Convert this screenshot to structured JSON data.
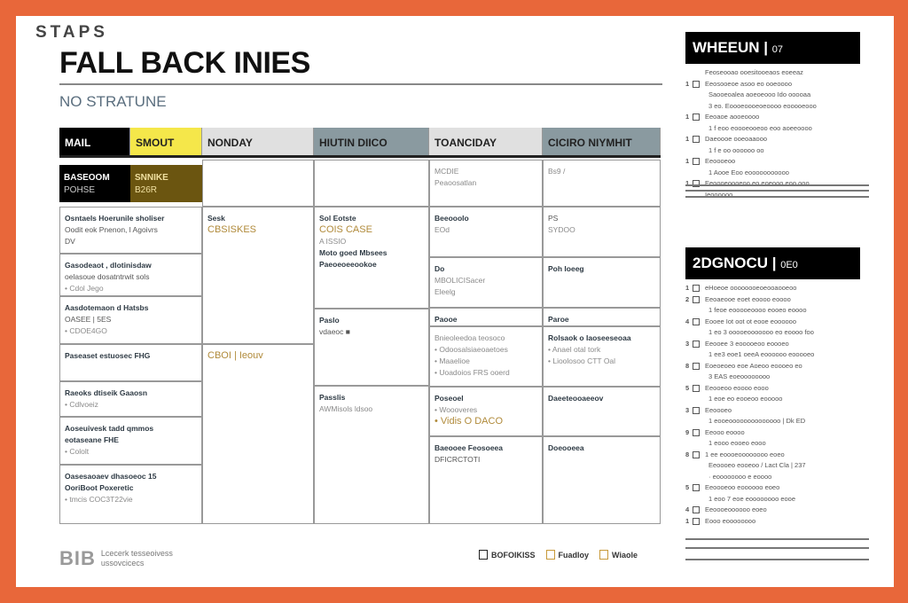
{
  "kicker": "STAPS",
  "title": "FALL BACK INIES",
  "subtitle": "NO STRATUNE",
  "colors": {
    "frame": "#e8673a",
    "black": "#000000",
    "yellow": "#f5e74a",
    "olive": "#6b5510",
    "slate": "#8a9aa0",
    "light": "#e0e0e0"
  },
  "headers": [
    {
      "label": "MAIL",
      "bg": "#000000",
      "fg": "#ffffff"
    },
    {
      "label": "SMOUT",
      "bg": "#f5e74a",
      "fg": "#222222"
    },
    {
      "label": "NONDAY",
      "bg": "#e0e0e0",
      "fg": "#222222"
    },
    {
      "label": "HIUTIN DIICO",
      "bg": "#8a9aa0",
      "fg": "#222222"
    },
    {
      "label": "TOANCIDAY",
      "bg": "#e0e0e0",
      "fg": "#222222"
    },
    {
      "label": "CICIRO NIYMHIT",
      "bg": "#8a9aa0",
      "fg": "#222222"
    }
  ],
  "feature": {
    "left": [
      "BASEOOM",
      "POHSE"
    ],
    "right": [
      "SNNIKE",
      "B26R"
    ]
  },
  "cells": {
    "c1a": [
      {
        "t": "Osntaels Hoerunile sholiser",
        "c": "b"
      },
      {
        "t": "Oodit eok Pnenon, l Agoivrs",
        "c": "d"
      },
      {
        "t": "DV",
        "c": "d"
      }
    ],
    "c1b": [
      {
        "t": "Gasodeaot , dlotinisdaw",
        "c": "b"
      },
      {
        "t": "oelasoue dosatntrwit sols",
        "c": "d"
      },
      {
        "t": "• Cdol Jego",
        "c": "g"
      }
    ],
    "c1c": [
      {
        "t": "Aasdotemaon d Hatsbs",
        "c": "b"
      },
      {
        "t": "OASEE | 5ES",
        "c": "d"
      },
      {
        "t": "• CDOE4GO",
        "c": "g"
      }
    ],
    "c1d": [
      {
        "t": "Paseaset estuosec FHG",
        "c": "b"
      }
    ],
    "c1e": [
      {
        "t": "Raeoks dtiseik Gaaosn",
        "c": "b"
      },
      {
        "t": "• Cdlvoeiz",
        "c": "g"
      }
    ],
    "c1f": [
      {
        "t": "Aoseuivesk tadd qmmos",
        "c": "b"
      },
      {
        "t": "eotaseane FHE",
        "c": "b"
      },
      {
        "t": "• Cololt",
        "c": "g"
      }
    ],
    "c1g": [
      {
        "t": "Oasesaoaev dhasoeoc 15",
        "c": "b"
      },
      {
        "t": "OoriBoot  Poxeretic",
        "c": "b"
      },
      {
        "t": "• tmcis COC3T22vie",
        "c": "g"
      }
    ],
    "c2a": [
      {
        "t": "Sesk",
        "c": "b"
      },
      {
        "t": "CBSISKES",
        "c": "o"
      }
    ],
    "c2b": [
      {
        "t": "CBOI | Ieouv",
        "c": "o"
      }
    ],
    "c3a": [
      {
        "t": "Sol Eotste",
        "c": "b"
      },
      {
        "t": "COIS CASE",
        "c": "o"
      },
      {
        "t": "A ISSIO",
        "c": "g"
      },
      {
        "t": " ",
        "c": "g"
      },
      {
        "t": " ",
        "c": "g"
      },
      {
        "t": "Moto goed Mbsees",
        "c": "b"
      },
      {
        "t": "Paeoeoeeookoe",
        "c": "b"
      }
    ],
    "c3b": [
      {
        "t": "Paslo",
        "c": "b"
      },
      {
        "t": "vdaeoc ■",
        "c": "d"
      }
    ],
    "c3c": [
      {
        "t": "Passlis",
        "c": "b"
      },
      {
        "t": "AWMisols ldsoo",
        "c": "g"
      }
    ],
    "c4h": [
      {
        "t": "MCDIE",
        "c": "g"
      },
      {
        "t": "Peaoosatlan",
        "c": "g"
      }
    ],
    "c4a": [
      {
        "t": "Beeooolo",
        "c": "b"
      },
      {
        "t": "EOd",
        "c": "g"
      }
    ],
    "c4b": [
      {
        "t": "Do",
        "c": "b"
      },
      {
        "t": "MBOLICISacer",
        "c": "g"
      },
      {
        "t": "Eleelg",
        "c": "g"
      }
    ],
    "c4c": [
      {
        "t": "Paooe",
        "c": "b"
      }
    ],
    "c4d": [
      {
        "t": "Bnieoleedoa teosoco",
        "c": "g"
      },
      {
        "t": "• Odoosalsiaeoaetoes",
        "c": "g"
      },
      {
        "t": "• Maaelioe",
        "c": "g"
      },
      {
        "t": "• Uoadoios FRS ooerd",
        "c": "g"
      }
    ],
    "c4e": [
      {
        "t": "Poseoel",
        "c": "b"
      },
      {
        "t": "• Woooveres",
        "c": "g"
      },
      {
        "t": "• Vidis O DACO",
        "c": "o"
      }
    ],
    "c4f": [
      {
        "t": "Baeooee Feosoeea",
        "c": "b"
      },
      {
        "t": "DFICRCTOTI",
        "c": "d"
      }
    ],
    "c5h": [
      {
        "t": "Bs9 /",
        "c": "g"
      }
    ],
    "c5a": [
      {
        "t": "PS",
        "c": "d"
      },
      {
        "t": "SYDOO",
        "c": "g"
      }
    ],
    "c5b": [
      {
        "t": "Poh Ioeeg",
        "c": "b"
      }
    ],
    "c5c": [
      {
        "t": "Paroe",
        "c": "b"
      }
    ],
    "c5d": [
      {
        "t": "Rolsaok o Iaoseeseoaa",
        "c": "b"
      },
      {
        "t": "• Anael otal tork",
        "c": "g"
      },
      {
        "t": "• Lioolosoo CTT Oal",
        "c": "g"
      }
    ],
    "c5e": [
      {
        "t": "Daeeteooaeeov",
        "c": "b"
      }
    ],
    "c5f": [
      {
        "t": "Doeooeea",
        "c": "b"
      }
    ]
  },
  "panels": [
    {
      "title": "WHEEUN",
      "tag": "07",
      "items": [
        {
          "n": "",
          "t": "Feoseooao ooesitooeaos eoeeaz",
          "sub": false,
          "box": false
        },
        {
          "n": "1",
          "t": "Eeosooeoe asoo eo ooeoooo",
          "sub": false,
          "box": true
        },
        {
          "n": "",
          "t": "Saooeoalea aoeoeooo  Ido ooooaa",
          "sub": true
        },
        {
          "n": "",
          "t": "3 eo. Eoooeoooeoeoooo eooooeooo",
          "sub": true
        },
        {
          "n": "1",
          "t": "Eeoaoe aooeoooo",
          "sub": false,
          "box": true
        },
        {
          "n": "",
          "t": "1 f eoo eoooeooeoo eoo aoeeoooo",
          "sub": true
        },
        {
          "n": "1",
          "t": "Daeoooe ooeoaaooo",
          "sub": false,
          "box": true
        },
        {
          "n": "",
          "t": "1 f e oo oooooo oo",
          "sub": true
        },
        {
          "n": "1",
          "t": "Eeoooeoo",
          "sub": false,
          "box": true
        },
        {
          "n": "",
          "t": "1 Aooe Eoo eooooooooooo",
          "sub": true
        },
        {
          "n": "1",
          "t": "Eeoooeoooeoo eo eoeooo eoo ooo",
          "sub": false,
          "box": true
        },
        {
          "n": "",
          "t": "Ieoooooo",
          "sub": false,
          "box": false
        }
      ]
    },
    {
      "title": "2DGNOCU",
      "tag": "0E0",
      "items": [
        {
          "n": "1",
          "t": "eHoeoe oooooooeoeooaooeoo",
          "box": true
        },
        {
          "n": "2",
          "t": "Eeoaeooe eoet eoooo eoooo",
          "box": true
        },
        {
          "n": "",
          "t": "1 feoe eooooeoooo eooeo eoooo",
          "sub": true
        },
        {
          "n": "4",
          "t": "Eooee Iot oot ot eooe eoooooo",
          "box": true
        },
        {
          "n": "",
          "t": "1 eo 3 ooooeooooooo eo eoooo foo",
          "sub": true
        },
        {
          "n": "3",
          "t": "Eeooee 3 eooooeoo eoooeo",
          "box": true
        },
        {
          "n": "",
          "t": "1 ee3 eoe1 oeeA eoooooo eooooeo",
          "sub": true
        },
        {
          "n": "8",
          "t": "Eoeoeoeo eoe Aoeoo eoooeo eo",
          "box": true
        },
        {
          "n": "",
          "t": "3 EAS eoeoooooooo",
          "sub": true
        },
        {
          "n": "5",
          "t": "Eeooeoo eoooo eooo",
          "box": true
        },
        {
          "n": "",
          "t": "1 eoe eo eooeoo eooooo",
          "sub": true
        },
        {
          "n": "3",
          "t": "Eeoooeo",
          "box": true
        },
        {
          "n": "",
          "t": "1 eooeoooooooooooooo | Dk ED",
          "sub": true
        },
        {
          "n": "9",
          "t": "Eeooo eoooo",
          "box": true
        },
        {
          "n": "",
          "t": "1 eooo eooeo eooo",
          "sub": true
        },
        {
          "n": "8",
          "t": "1  ee eoooeoooooooo eoeo",
          "box": true
        },
        {
          "n": "",
          "t": "Eeoooeo eooeoo / Lact Cla | 237",
          "sub": true
        },
        {
          "n": "",
          "t": "   · eoooooooo e eoooo",
          "sub": true
        },
        {
          "n": "5",
          "t": "Eeoooeoo eoooooo eoeo",
          "box": true
        },
        {
          "n": "",
          "t": "1 eoo 7 eoe eoooooooo eooe",
          "sub": true
        },
        {
          "n": "4",
          "t": "Eeoooeoooooo eoeo",
          "box": true
        },
        {
          "n": "1",
          "t": "Eooo eoooooooo",
          "box": true
        }
      ]
    }
  ],
  "footer": {
    "logo": "BIB",
    "lines": [
      "Lcecerk tesseoivess",
      "ussovcicecs"
    ],
    "legend": [
      {
        "label": "BOFOIKISS",
        "color": "#222222"
      },
      {
        "label": "Fuadloy",
        "color": "#c89a3a"
      },
      {
        "label": "Wiaole",
        "color": "#c89a3a"
      }
    ]
  }
}
